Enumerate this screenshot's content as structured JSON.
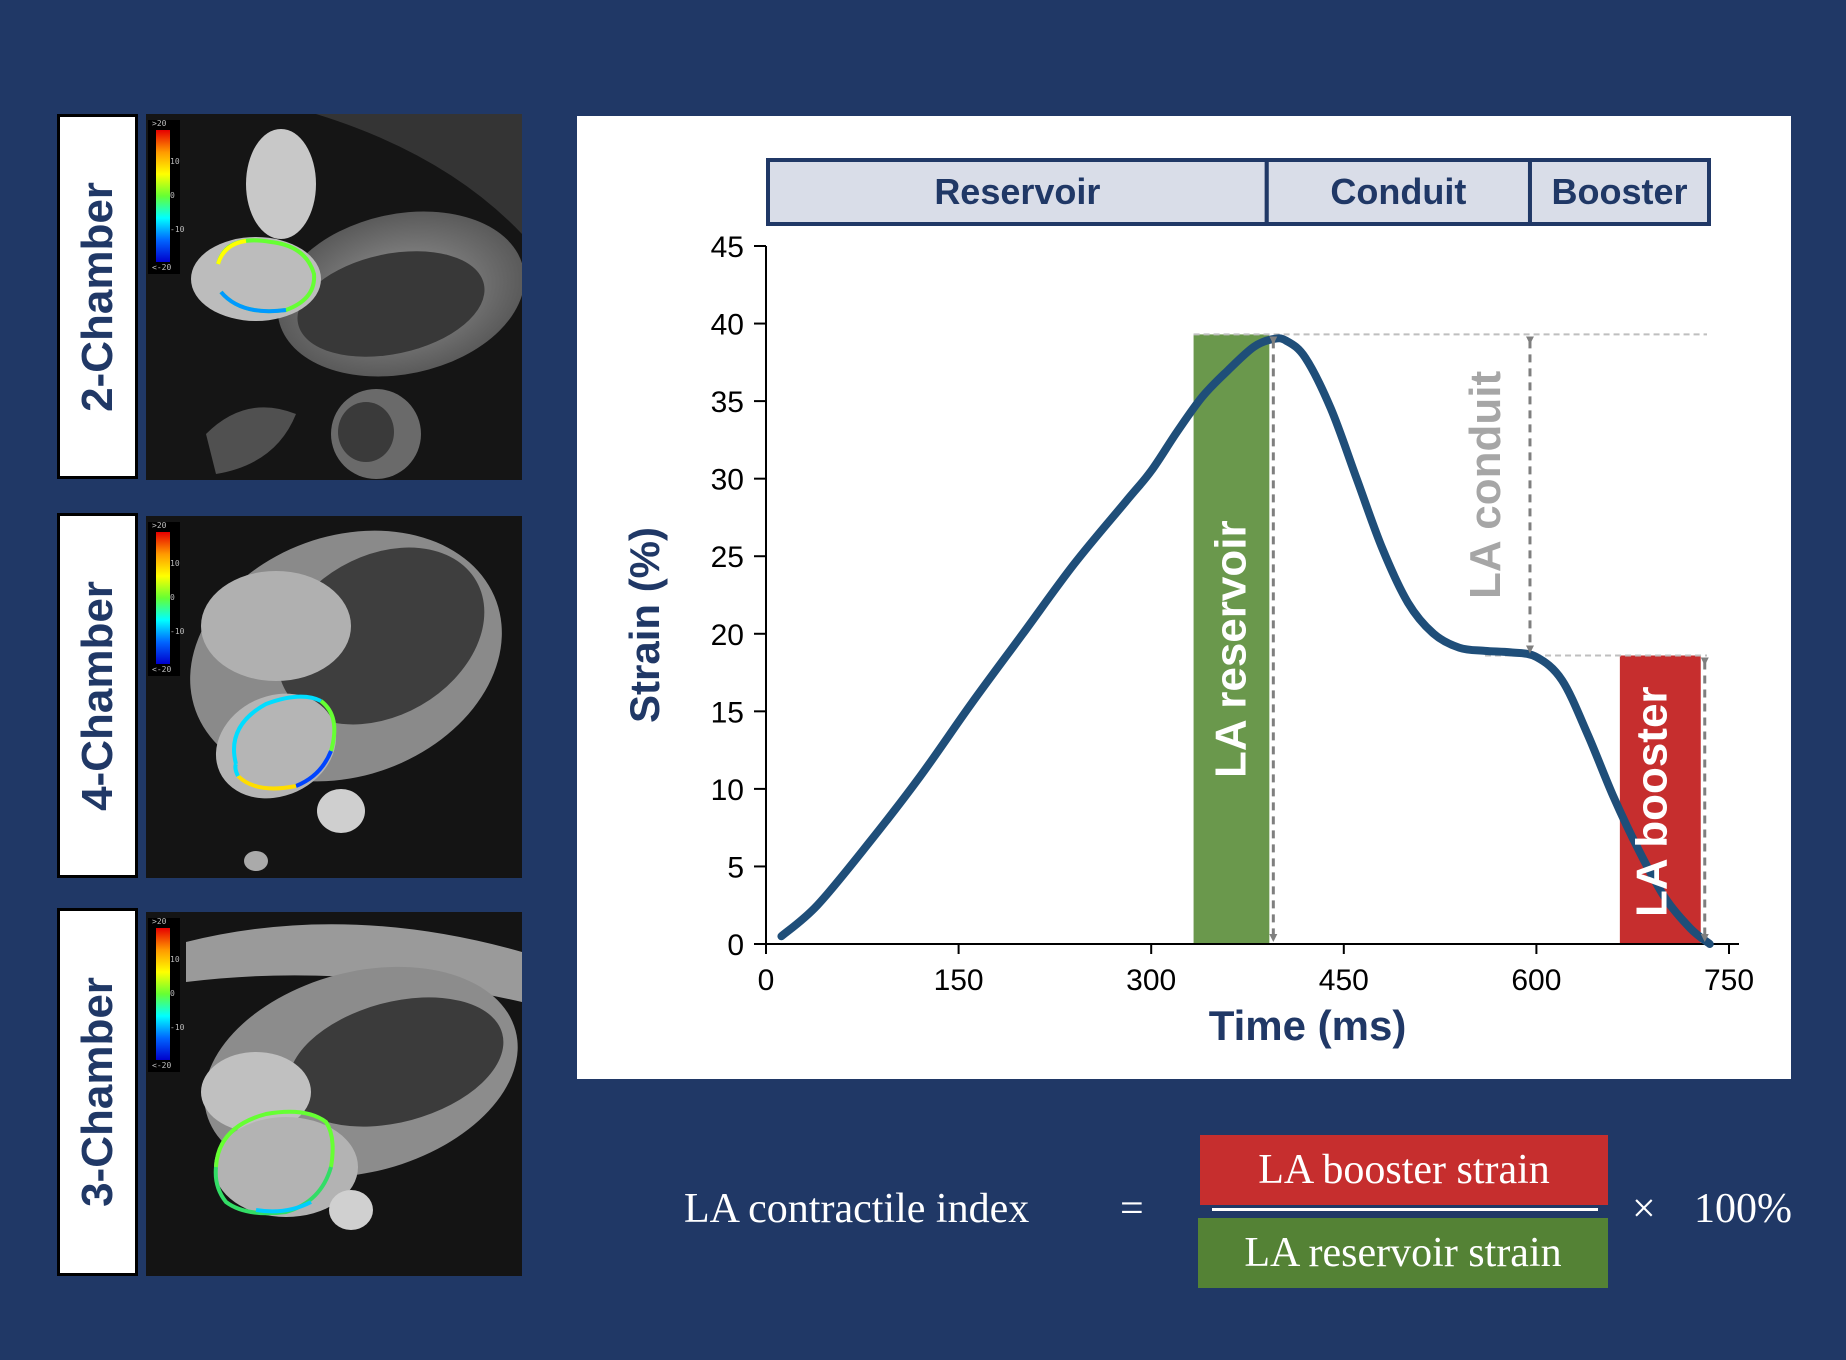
{
  "views": [
    {
      "label": "2-Chamber",
      "colorbar": [
        ">20",
        "10",
        "0",
        "-10",
        "<-20"
      ]
    },
    {
      "label": "4-Chamber",
      "colorbar": [
        ">20",
        "10",
        "0",
        "-10",
        "<-20"
      ]
    },
    {
      "label": "3-Chamber",
      "colorbar": [
        ">20",
        "10",
        "0",
        "-10",
        "<-20"
      ]
    }
  ],
  "phases": [
    {
      "label": "Reservoir",
      "start": 0,
      "end": 390
    },
    {
      "label": "Conduit",
      "start": 390,
      "end": 595
    },
    {
      "label": "Booster",
      "start": 595,
      "end": 735
    }
  ],
  "chart_data": {
    "type": "line",
    "xlabel": "Time (ms)",
    "ylabel": "Strain (%)",
    "xlim": [
      0,
      750
    ],
    "ylim": [
      0,
      45
    ],
    "xticks": [
      0,
      150,
      300,
      450,
      600,
      750
    ],
    "yticks": [
      0,
      5,
      10,
      15,
      20,
      25,
      30,
      35,
      40,
      45
    ],
    "series": [
      {
        "color": "#1f4e79",
        "x": [
          12,
          40,
          80,
          120,
          160,
          200,
          240,
          280,
          300,
          320,
          340,
          360,
          380,
          395,
          405,
          420,
          440,
          460,
          480,
          500,
          520,
          540,
          560,
          580,
          600,
          620,
          640,
          660,
          680,
          700,
          720,
          735
        ],
        "y": [
          0.5,
          2.5,
          6.5,
          10.8,
          15.5,
          20.0,
          24.5,
          28.5,
          30.5,
          33.0,
          35.3,
          37.0,
          38.5,
          39.0,
          38.9,
          37.8,
          34.5,
          30.0,
          25.5,
          22.0,
          20.0,
          19.1,
          18.9,
          18.8,
          18.5,
          17.0,
          13.5,
          9.5,
          6.0,
          3.0,
          1.0,
          0.0
        ]
      }
    ],
    "annotations": [
      {
        "label": "LA reservoir",
        "color": "#6a984c",
        "x_start": 333,
        "x_end": 392,
        "y_start": 0,
        "y_end": 39.3
      },
      {
        "label": "LA conduit",
        "color": "#a6a6a6",
        "x": 595,
        "y_start": 18.6,
        "y_end": 39.3
      },
      {
        "label": "LA booster",
        "color": "#c62e2e",
        "x_start": 665,
        "x_end": 728,
        "y_start": 0,
        "y_end": 18.6
      }
    ]
  },
  "formula": {
    "lhs": "LA contractile index",
    "equals": "=",
    "numerator": "LA booster strain",
    "denominator": "LA reservoir strain",
    "times": "×",
    "factor": "100%",
    "numerator_color": "#c62e2e",
    "denominator_color": "#548235"
  }
}
